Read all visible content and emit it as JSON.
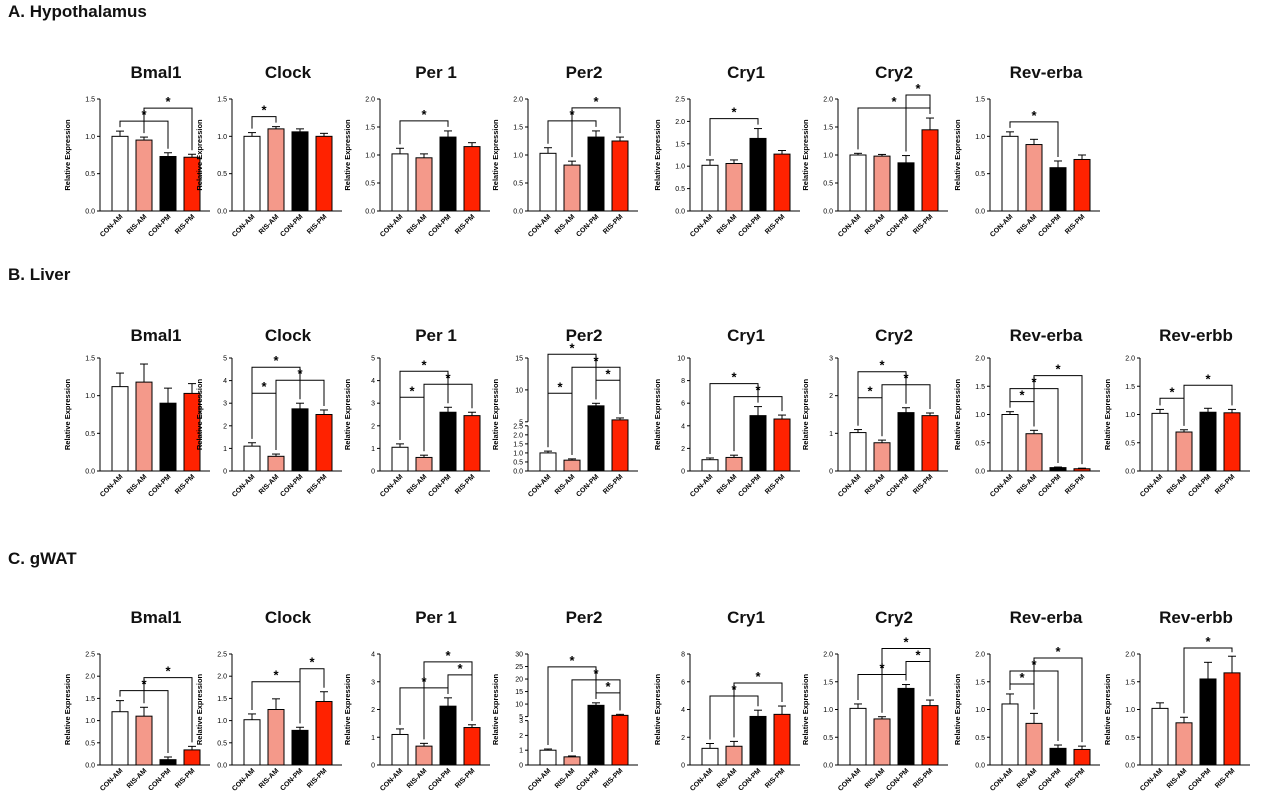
{
  "sections": [
    {
      "title": "A. Hypothalamus"
    },
    {
      "title": "B. Liver"
    },
    {
      "title": "C. gWAT"
    }
  ],
  "groups": [
    "CON-AM",
    "RIS-AM",
    "CON-PM",
    "RIS-PM"
  ],
  "colors": {
    "CON-AM": "#ffffff",
    "RIS-AM": "#f4998a",
    "CON-PM": "#000000",
    "RIS-PM": "#ff2200"
  },
  "ylabel": "Relative Expression",
  "chart_data": [
    {
      "type": "bar",
      "section": 0,
      "title": "Bmal1",
      "categories": [
        "CON-AM",
        "RIS-AM",
        "CON-PM",
        "RIS-PM"
      ],
      "values": [
        1.0,
        0.95,
        0.73,
        0.72
      ],
      "errors": [
        0.07,
        0.04,
        0.05,
        0.04
      ],
      "ylim": [
        0,
        1.5
      ],
      "yticks": [
        "0.0",
        "0.5",
        "1.0",
        "1.5"
      ],
      "ylabel": "Relative Expression",
      "sig": [
        {
          "a": 0,
          "b": 2,
          "label": "*"
        },
        {
          "a": 1,
          "b": 3,
          "label": "*"
        }
      ]
    },
    {
      "type": "bar",
      "section": 0,
      "title": "Clock",
      "categories": [
        "CON-AM",
        "RIS-AM",
        "CON-PM",
        "RIS-PM"
      ],
      "values": [
        1.0,
        1.1,
        1.06,
        1.0
      ],
      "errors": [
        0.05,
        0.03,
        0.04,
        0.04
      ],
      "ylim": [
        0,
        1.5
      ],
      "yticks": [
        "0.0",
        "0.5",
        "1.0",
        "1.5"
      ],
      "ylabel": "Relative Expression",
      "sig": [
        {
          "a": 0,
          "b": 1,
          "label": "*"
        }
      ]
    },
    {
      "type": "bar",
      "section": 0,
      "title": "Per 1",
      "categories": [
        "CON-AM",
        "RIS-AM",
        "CON-PM",
        "RIS-PM"
      ],
      "values": [
        1.02,
        0.95,
        1.32,
        1.15
      ],
      "errors": [
        0.1,
        0.07,
        0.11,
        0.07
      ],
      "ylim": [
        0,
        2.0
      ],
      "yticks": [
        "0.0",
        "0.5",
        "1.0",
        "1.5",
        "2.0"
      ],
      "ylabel": "Relative Expression",
      "sig": [
        {
          "a": 0,
          "b": 2,
          "label": "*"
        }
      ]
    },
    {
      "type": "bar",
      "section": 0,
      "title": "Per2",
      "categories": [
        "CON-AM",
        "RIS-AM",
        "CON-PM",
        "RIS-PM"
      ],
      "values": [
        1.03,
        0.82,
        1.32,
        1.25
      ],
      "errors": [
        0.1,
        0.07,
        0.11,
        0.07
      ],
      "ylim": [
        0,
        2.0
      ],
      "yticks": [
        "0.0",
        "0.5",
        "1.0",
        "1.5",
        "2.0"
      ],
      "ylabel": "Relative Expression",
      "sig": [
        {
          "a": 0,
          "b": 2,
          "label": "*"
        },
        {
          "a": 1,
          "b": 3,
          "label": "*"
        }
      ]
    },
    {
      "type": "bar",
      "section": 0,
      "title": "Cry1",
      "categories": [
        "CON-AM",
        "RIS-AM",
        "CON-PM",
        "RIS-PM"
      ],
      "values": [
        1.02,
        1.06,
        1.62,
        1.27
      ],
      "errors": [
        0.12,
        0.08,
        0.22,
        0.08
      ],
      "ylim": [
        0,
        2.5
      ],
      "yticks": [
        "0.0",
        "0.5",
        "1.0",
        "1.5",
        "2.0",
        "2.5"
      ],
      "ylabel": "Relative Expression",
      "sig": [
        {
          "a": 0,
          "b": 2,
          "label": "*"
        }
      ]
    },
    {
      "type": "bar",
      "section": 0,
      "title": "Cry2",
      "categories": [
        "CON-AM",
        "RIS-AM",
        "CON-PM",
        "RIS-PM"
      ],
      "values": [
        1.0,
        0.98,
        0.86,
        1.45
      ],
      "errors": [
        0.03,
        0.03,
        0.13,
        0.21
      ],
      "ylim": [
        0,
        2.0
      ],
      "yticks": [
        "0.0",
        "0.5",
        "1.0",
        "1.5",
        "2.0"
      ],
      "ylabel": "Relative Expression",
      "sig": [
        {
          "a": 0,
          "b": 3,
          "label": "*"
        },
        {
          "a": 2,
          "b": 3,
          "label": "*"
        }
      ]
    },
    {
      "type": "bar",
      "section": 0,
      "title": "Rev-erba",
      "categories": [
        "CON-AM",
        "RIS-AM",
        "CON-PM",
        "RIS-PM"
      ],
      "values": [
        1.0,
        0.89,
        0.58,
        0.69
      ],
      "errors": [
        0.06,
        0.07,
        0.09,
        0.06
      ],
      "ylim": [
        0,
        1.5
      ],
      "yticks": [
        "0.0",
        "0.5",
        "1.0",
        "1.5"
      ],
      "ylabel": "Relative Expression",
      "sig": [
        {
          "a": 0,
          "b": 2,
          "label": "*"
        }
      ]
    },
    {
      "type": "bar",
      "section": 1,
      "title": "Bmal1",
      "categories": [
        "CON-AM",
        "RIS-AM",
        "CON-PM",
        "RIS-PM"
      ],
      "values": [
        1.12,
        1.18,
        0.9,
        1.03
      ],
      "errors": [
        0.18,
        0.24,
        0.2,
        0.13
      ],
      "ylim": [
        0,
        1.5
      ],
      "yticks": [
        "0.0",
        "0.5",
        "1.0",
        "1.5"
      ],
      "ylabel": "Relative Expression",
      "sig": []
    },
    {
      "type": "bar",
      "section": 1,
      "title": "Clock",
      "categories": [
        "CON-AM",
        "RIS-AM",
        "CON-PM",
        "RIS-PM"
      ],
      "values": [
        1.1,
        0.65,
        2.75,
        2.5
      ],
      "errors": [
        0.15,
        0.1,
        0.25,
        0.2
      ],
      "ylim": [
        0,
        5
      ],
      "yticks": [
        "0",
        "1",
        "2",
        "3",
        "4",
        "5"
      ],
      "ylabel": "Relative Expression",
      "sig": [
        {
          "a": 0,
          "b": 1,
          "label": "*"
        },
        {
          "a": 1,
          "b": 3,
          "label": "*"
        },
        {
          "a": 0,
          "b": 2,
          "label": "*"
        }
      ]
    },
    {
      "type": "bar",
      "section": 1,
      "title": "Per 1",
      "categories": [
        "CON-AM",
        "RIS-AM",
        "CON-PM",
        "RIS-PM"
      ],
      "values": [
        1.05,
        0.6,
        2.6,
        2.45
      ],
      "errors": [
        0.15,
        0.1,
        0.22,
        0.15
      ],
      "ylim": [
        0,
        5
      ],
      "yticks": [
        "0",
        "1",
        "2",
        "3",
        "4",
        "5"
      ],
      "ylabel": "Relative Expression",
      "sig": [
        {
          "a": 0,
          "b": 1,
          "label": "*"
        },
        {
          "a": 1,
          "b": 3,
          "label": "*"
        },
        {
          "a": 0,
          "b": 2,
          "label": "*"
        }
      ]
    },
    {
      "type": "bar",
      "section": 1,
      "title": "Per2",
      "categories": [
        "CON-AM",
        "RIS-AM",
        "CON-PM",
        "RIS-PM"
      ],
      "values": [
        1.0,
        0.6,
        7.5,
        5.3
      ],
      "errors": [
        0.1,
        0.07,
        0.4,
        0.3
      ],
      "break": true,
      "ylim": [
        0,
        15
      ],
      "yticks": [
        "0.0",
        "0.5",
        "1.0",
        "1.5",
        "2.0",
        "2.5",
        "5",
        "10",
        "15"
      ],
      "ylabel": "Relative Expression",
      "sig": [
        {
          "a": 0,
          "b": 1,
          "label": "*"
        },
        {
          "a": 2,
          "b": 3,
          "label": "*"
        },
        {
          "a": 1,
          "b": 3,
          "label": "*"
        },
        {
          "a": 0,
          "b": 2,
          "label": "*"
        }
      ]
    },
    {
      "type": "bar",
      "section": 1,
      "title": "Cry1",
      "categories": [
        "CON-AM",
        "RIS-AM",
        "CON-PM",
        "RIS-PM"
      ],
      "values": [
        1.0,
        1.2,
        4.9,
        4.6
      ],
      "errors": [
        0.15,
        0.2,
        0.8,
        0.35
      ],
      "ylim": [
        0,
        10
      ],
      "yticks": [
        "0",
        "2",
        "4",
        "6",
        "8",
        "10"
      ],
      "ylabel": "Relative Expression",
      "sig": [
        {
          "a": 1,
          "b": 3,
          "label": "*"
        },
        {
          "a": 0,
          "b": 2,
          "label": "*"
        }
      ]
    },
    {
      "type": "bar",
      "section": 1,
      "title": "Cry2",
      "categories": [
        "CON-AM",
        "RIS-AM",
        "CON-PM",
        "RIS-PM"
      ],
      "values": [
        1.02,
        0.75,
        1.55,
        1.47
      ],
      "errors": [
        0.08,
        0.07,
        0.13,
        0.07
      ],
      "ylim": [
        0,
        3
      ],
      "yticks": [
        "0",
        "1",
        "2",
        "3"
      ],
      "ylabel": "Relative Expression",
      "sig": [
        {
          "a": 0,
          "b": 1,
          "label": "*"
        },
        {
          "a": 1,
          "b": 3,
          "label": "*"
        },
        {
          "a": 0,
          "b": 2,
          "label": "*"
        }
      ]
    },
    {
      "type": "bar",
      "section": 1,
      "title": "Rev-erba",
      "categories": [
        "CON-AM",
        "RIS-AM",
        "CON-PM",
        "RIS-PM"
      ],
      "values": [
        1.0,
        0.66,
        0.06,
        0.04
      ],
      "errors": [
        0.05,
        0.06,
        0.01,
        0.01
      ],
      "ylim": [
        0,
        2.0
      ],
      "yticks": [
        "0.0",
        "0.5",
        "1.0",
        "1.5",
        "2.0"
      ],
      "ylabel": "Relative Expression",
      "sig": [
        {
          "a": 0,
          "b": 1,
          "label": "*"
        },
        {
          "a": 0,
          "b": 2,
          "label": "*"
        },
        {
          "a": 1,
          "b": 3,
          "label": "*"
        }
      ]
    },
    {
      "type": "bar",
      "section": 1,
      "title": "Rev-erbb",
      "categories": [
        "CON-AM",
        "RIS-AM",
        "CON-PM",
        "RIS-PM"
      ],
      "values": [
        1.02,
        0.69,
        1.04,
        1.03
      ],
      "errors": [
        0.07,
        0.04,
        0.07,
        0.06
      ],
      "ylim": [
        0,
        2.0
      ],
      "yticks": [
        "0.0",
        "0.5",
        "1.0",
        "1.5",
        "2.0"
      ],
      "ylabel": "Relative Expression",
      "sig": [
        {
          "a": 0,
          "b": 1,
          "label": "*"
        },
        {
          "a": 1,
          "b": 3,
          "label": "*"
        }
      ]
    },
    {
      "type": "bar",
      "section": 2,
      "title": "Bmal1",
      "categories": [
        "CON-AM",
        "RIS-AM",
        "CON-PM",
        "RIS-PM"
      ],
      "values": [
        1.2,
        1.1,
        0.12,
        0.34
      ],
      "errors": [
        0.25,
        0.2,
        0.06,
        0.08
      ],
      "ylim": [
        0,
        2.5
      ],
      "yticks": [
        "0.0",
        "0.5",
        "1.0",
        "1.5",
        "2.0",
        "2.5"
      ],
      "ylabel": "Relative Expression",
      "sig": [
        {
          "a": 0,
          "b": 2,
          "label": "*"
        },
        {
          "a": 1,
          "b": 3,
          "label": "*"
        }
      ]
    },
    {
      "type": "bar",
      "section": 2,
      "title": "Clock",
      "categories": [
        "CON-AM",
        "RIS-AM",
        "CON-PM",
        "RIS-PM"
      ],
      "values": [
        1.02,
        1.25,
        0.78,
        1.43
      ],
      "errors": [
        0.13,
        0.24,
        0.07,
        0.22
      ],
      "ylim": [
        0,
        2.5
      ],
      "yticks": [
        "0.0",
        "0.5",
        "1.0",
        "1.5",
        "2.0",
        "2.5"
      ],
      "ylabel": "Relative Expression",
      "sig": [
        {
          "a": 0,
          "b": 2,
          "label": "*"
        },
        {
          "a": 2,
          "b": 3,
          "label": "*"
        }
      ]
    },
    {
      "type": "bar",
      "section": 2,
      "title": "Per 1",
      "categories": [
        "CON-AM",
        "RIS-AM",
        "CON-PM",
        "RIS-PM"
      ],
      "values": [
        1.1,
        0.68,
        2.12,
        1.35
      ],
      "errors": [
        0.2,
        0.1,
        0.3,
        0.1
      ],
      "ylim": [
        0,
        4
      ],
      "yticks": [
        "0",
        "1",
        "2",
        "3",
        "4"
      ],
      "ylabel": "Relative Expression",
      "sig": [
        {
          "a": 0,
          "b": 2,
          "label": "*"
        },
        {
          "a": 2,
          "b": 3,
          "label": "*"
        },
        {
          "a": 1,
          "b": 3,
          "label": "*"
        }
      ]
    },
    {
      "type": "bar",
      "section": 2,
      "title": "Per2",
      "categories": [
        "CON-AM",
        "RIS-AM",
        "CON-PM",
        "RIS-PM"
      ],
      "values": [
        1.0,
        0.55,
        9.5,
        5.5
      ],
      "errors": [
        0.08,
        0.06,
        1.0,
        0.4
      ],
      "break": true,
      "ylim": [
        0,
        30
      ],
      "yticks": [
        "0",
        "1",
        "2",
        "3",
        "5",
        "10",
        "15",
        "20",
        "25",
        "30"
      ],
      "ylabel": "Relative Expression",
      "sig": [
        {
          "a": 2,
          "b": 3,
          "label": "*"
        },
        {
          "a": 1,
          "b": 3,
          "label": "*"
        },
        {
          "a": 0,
          "b": 2,
          "label": "*"
        }
      ]
    },
    {
      "type": "bar",
      "section": 2,
      "title": "Cry1",
      "categories": [
        "CON-AM",
        "RIS-AM",
        "CON-PM",
        "RIS-PM"
      ],
      "values": [
        1.2,
        1.35,
        3.5,
        3.65
      ],
      "errors": [
        0.35,
        0.35,
        0.45,
        0.6
      ],
      "ylim": [
        0,
        8
      ],
      "yticks": [
        "0",
        "2",
        "4",
        "6",
        "8"
      ],
      "ylabel": "Relative Expression",
      "sig": [
        {
          "a": 0,
          "b": 2,
          "label": "*"
        },
        {
          "a": 1,
          "b": 3,
          "label": "*"
        }
      ]
    },
    {
      "type": "bar",
      "section": 2,
      "title": "Cry2",
      "categories": [
        "CON-AM",
        "RIS-AM",
        "CON-PM",
        "RIS-PM"
      ],
      "values": [
        1.02,
        0.83,
        1.38,
        1.07
      ],
      "errors": [
        0.08,
        0.04,
        0.07,
        0.1
      ],
      "ylim": [
        0,
        2.0
      ],
      "yticks": [
        "0.0",
        "0.5",
        "1.0",
        "1.5",
        "2.0"
      ],
      "ylabel": "Relative Expression",
      "sig": [
        {
          "a": 0,
          "b": 2,
          "label": "*"
        },
        {
          "a": 2,
          "b": 3,
          "label": "*"
        },
        {
          "a": 1,
          "b": 3,
          "label": "*"
        }
      ]
    },
    {
      "type": "bar",
      "section": 2,
      "title": "Rev-erba",
      "categories": [
        "CON-AM",
        "RIS-AM",
        "CON-PM",
        "RIS-PM"
      ],
      "values": [
        1.1,
        0.75,
        0.3,
        0.28
      ],
      "errors": [
        0.18,
        0.18,
        0.06,
        0.06
      ],
      "ylim": [
        0,
        2.0
      ],
      "yticks": [
        "0.0",
        "0.5",
        "1.0",
        "1.5",
        "2.0"
      ],
      "ylabel": "Relative Expression",
      "sig": [
        {
          "a": 0,
          "b": 1,
          "label": "*"
        },
        {
          "a": 0,
          "b": 2,
          "label": "*"
        },
        {
          "a": 1,
          "b": 3,
          "label": "*"
        }
      ]
    },
    {
      "type": "bar",
      "section": 2,
      "title": "Rev-erbb",
      "categories": [
        "CON-AM",
        "RIS-AM",
        "CON-PM",
        "RIS-PM"
      ],
      "values": [
        1.02,
        0.76,
        1.55,
        1.66
      ],
      "errors": [
        0.1,
        0.1,
        0.3,
        0.3
      ],
      "ylim": [
        0,
        2.0
      ],
      "yticks": [
        "0.0",
        "0.5",
        "1.0",
        "1.5",
        "2.0"
      ],
      "ylabel": "Relative Expression",
      "sig": [
        {
          "a": 1,
          "b": 3,
          "label": "*"
        }
      ]
    }
  ]
}
